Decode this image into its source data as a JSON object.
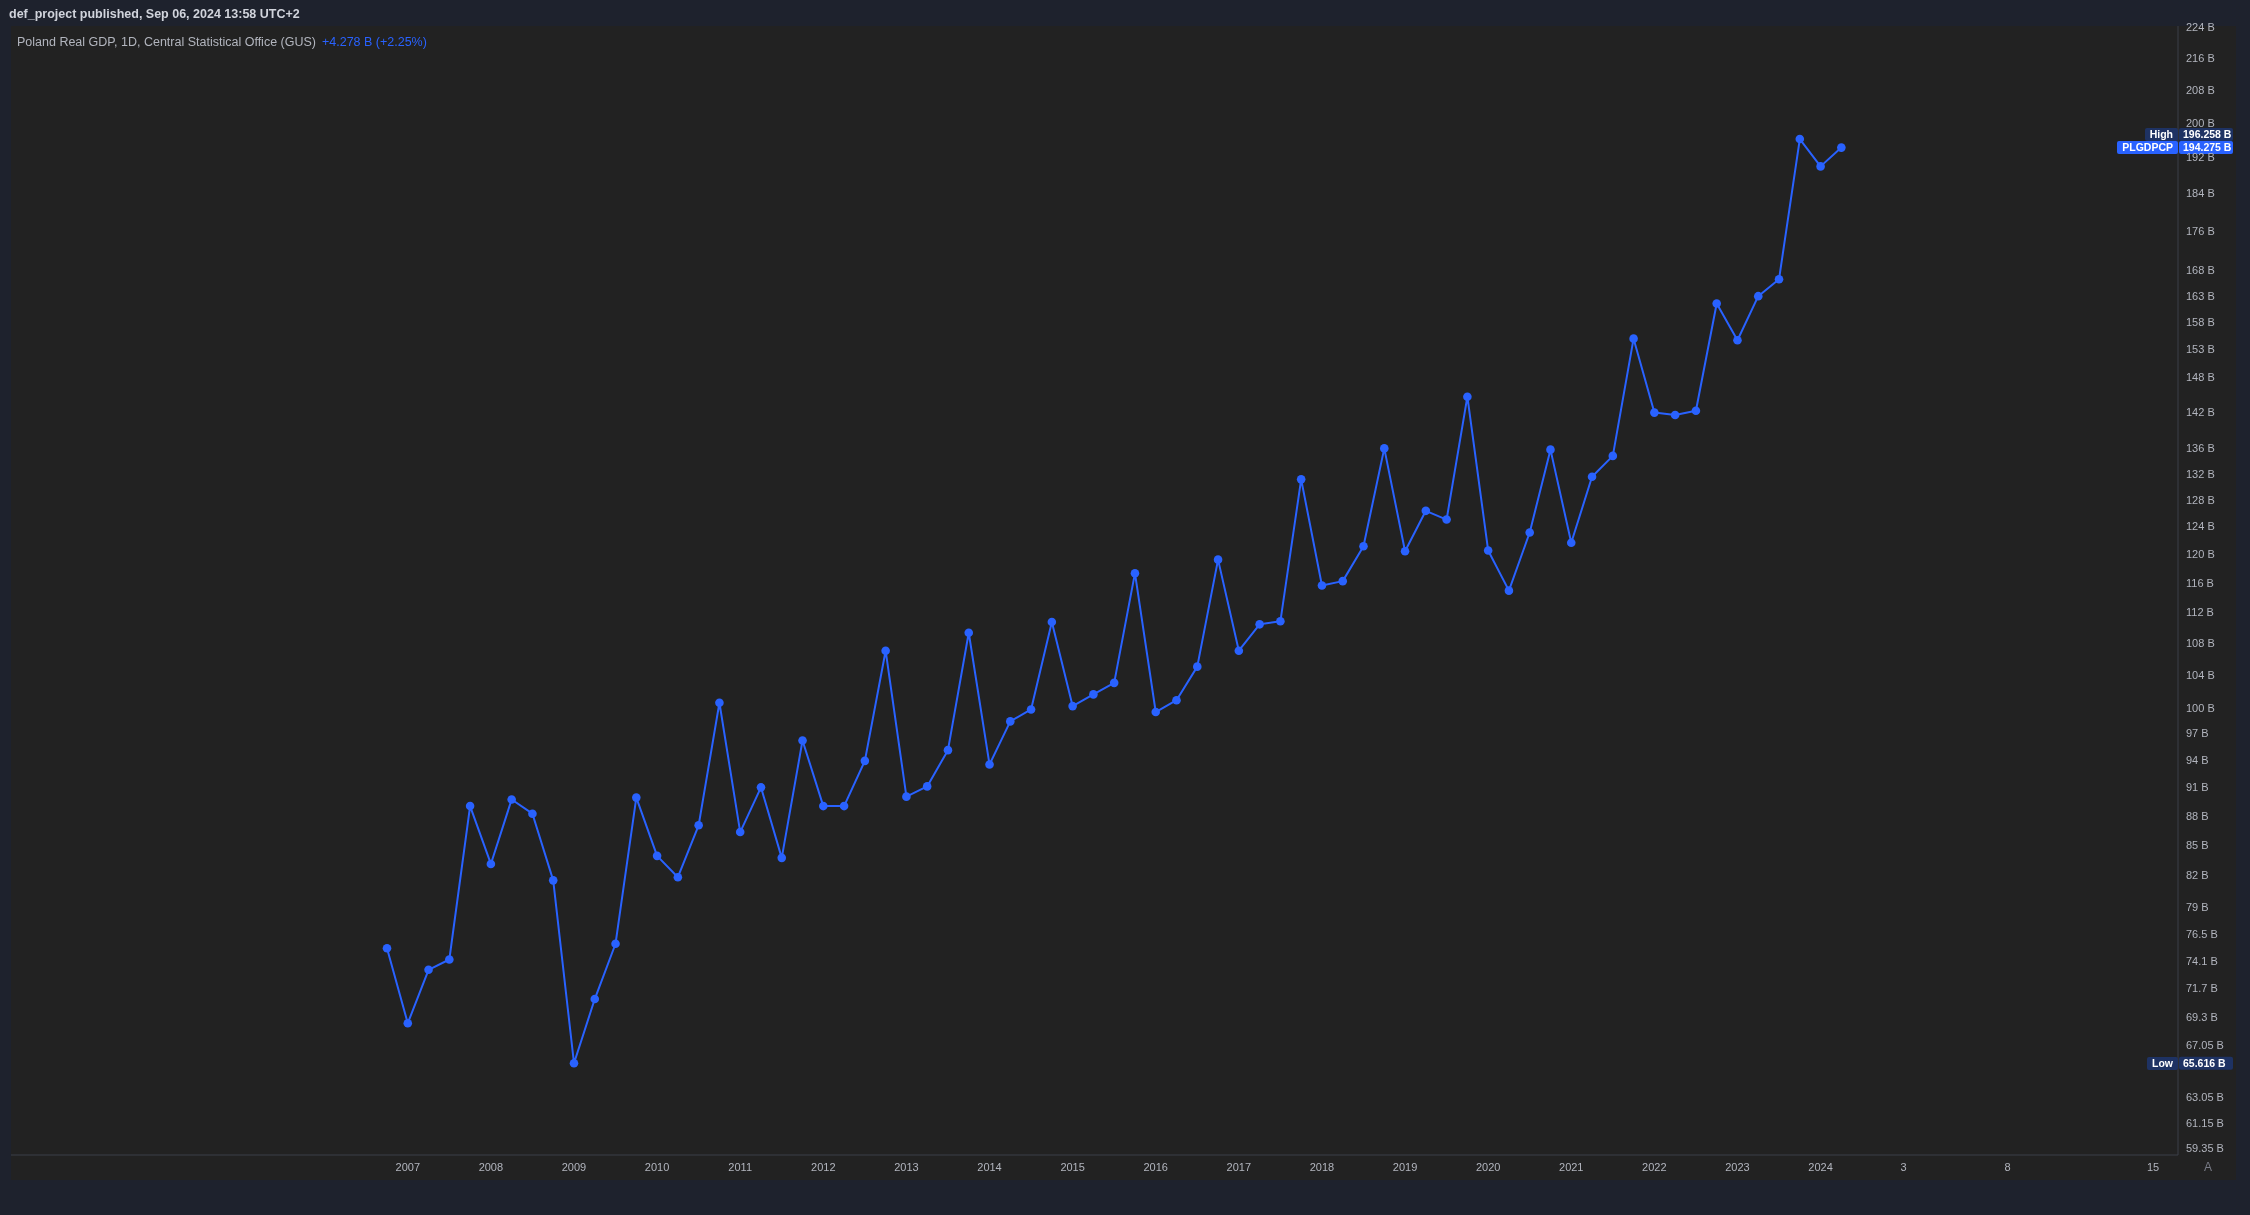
{
  "chart_data": {
    "type": "line",
    "title": "Poland Real GDP, 1D, Central Statistical Office (GUS)",
    "subtitle": "+4.278 B (+2.25%)",
    "annotations": [
      "def_project published, Sep 06, 2024 13:58 UTC+2",
      "High",
      "PLGDPCP",
      "Low",
      "A"
    ],
    "categories": [
      null,
      "2007",
      null,
      null,
      null,
      "2008",
      null,
      null,
      null,
      "2009",
      null,
      null,
      null,
      "2010",
      null,
      null,
      null,
      "2011",
      null,
      null,
      null,
      "2012",
      null,
      null,
      null,
      "2013",
      null,
      null,
      null,
      "2014",
      null,
      null,
      null,
      "2015",
      null,
      null,
      null,
      "2016",
      null,
      null,
      null,
      "2017",
      null,
      null,
      null,
      "2018",
      null,
      null,
      null,
      "2019",
      null,
      null,
      null,
      "2020",
      null,
      null,
      null,
      "2021",
      null,
      null,
      null,
      "2022",
      null,
      null,
      null,
      "2023",
      null,
      null,
      null,
      "2024",
      null,
      null,
      null,
      "3",
      null,
      null,
      null,
      null,
      "8",
      null,
      null,
      null,
      null,
      null,
      null,
      "15"
    ],
    "values": [
      75.2,
      68.8,
      73.3,
      74.2,
      89.0,
      83.1,
      89.7,
      88.2,
      81.5,
      65.616,
      70.8,
      75.6,
      89.9,
      83.9,
      81.8,
      87.0,
      100.6,
      86.3,
      91.0,
      83.7,
      96.2,
      89.0,
      89.0,
      93.9,
      107.0,
      90.0,
      91.1,
      95.1,
      109.3,
      93.5,
      98.4,
      99.8,
      110.7,
      100.2,
      101.6,
      103.0,
      117.3,
      99.5,
      100.9,
      105.0,
      119.2,
      107.0,
      110.4,
      110.8,
      131.1,
      115.6,
      116.2,
      121.1,
      136.0,
      120.4,
      126.3,
      125.0,
      144.6,
      120.5,
      114.9,
      123.1,
      135.8,
      121.6,
      131.5,
      134.8,
      154.9,
      141.9,
      141.5,
      142.2,
      161.5,
      154.6,
      162.9,
      166.2,
      196.258,
      189.997,
      194.275,
      null,
      null,
      null,
      null,
      null,
      null,
      null,
      null,
      null,
      null,
      null,
      null,
      null,
      null,
      null
    ],
    "color": "#2962ff",
    "marker": "circle",
    "line_style": "solid",
    "log": true,
    "ylim": [
      58.85,
      224.4
    ],
    "yticks": [
      {
        "value": 224,
        "label": "224 B"
      },
      {
        "value": 216,
        "label": "216 B"
      },
      {
        "value": 208,
        "label": "208 B"
      },
      {
        "value": 200,
        "label": "200 B"
      },
      {
        "value": 196.258,
        "label": "196.258 B"
      },
      {
        "value": 194.275,
        "label": "194.275 B"
      },
      {
        "value": 192,
        "label": "192 B"
      },
      {
        "value": 184,
        "label": "184 B"
      },
      {
        "value": 176,
        "label": "176 B"
      },
      {
        "value": 168,
        "label": "168 B"
      },
      {
        "value": 163,
        "label": "163 B"
      },
      {
        "value": 158,
        "label": "158 B"
      },
      {
        "value": 153,
        "label": "153 B"
      },
      {
        "value": 148,
        "label": "148 B"
      },
      {
        "value": 142,
        "label": "142 B"
      },
      {
        "value": 136,
        "label": "136 B"
      },
      {
        "value": 132,
        "label": "132 B"
      },
      {
        "value": 128,
        "label": "128 B"
      },
      {
        "value": 124,
        "label": "124 B"
      },
      {
        "value": 120,
        "label": "120 B"
      },
      {
        "value": 116,
        "label": "116 B"
      },
      {
        "value": 112,
        "label": "112 B"
      },
      {
        "value": 108,
        "label": "108 B"
      },
      {
        "value": 104,
        "label": "104 B"
      },
      {
        "value": 100,
        "label": "100 B"
      },
      {
        "value": 97,
        "label": "97 B"
      },
      {
        "value": 94,
        "label": "94 B"
      },
      {
        "value": 91,
        "label": "91 B"
      },
      {
        "value": 88,
        "label": "88 B"
      },
      {
        "value": 85,
        "label": "85 B"
      },
      {
        "value": 82,
        "label": "82 B"
      },
      {
        "value": 79,
        "label": "79 B"
      },
      {
        "value": 76.5,
        "label": "76.5 B"
      },
      {
        "value": 74.1,
        "label": "74.1 B"
      },
      {
        "value": 71.7,
        "label": "71.7 B"
      },
      {
        "value": 69.3,
        "label": "69.3 B"
      },
      {
        "value": 67.05,
        "label": "67.05 B"
      },
      {
        "value": 65.616,
        "label": "65.616 B"
      },
      {
        "value": 63.05,
        "label": "63.05 B"
      },
      {
        "value": 61.15,
        "label": "61.15 B"
      },
      {
        "value": 59.35,
        "label": "59.35 B"
      }
    ]
  }
}
